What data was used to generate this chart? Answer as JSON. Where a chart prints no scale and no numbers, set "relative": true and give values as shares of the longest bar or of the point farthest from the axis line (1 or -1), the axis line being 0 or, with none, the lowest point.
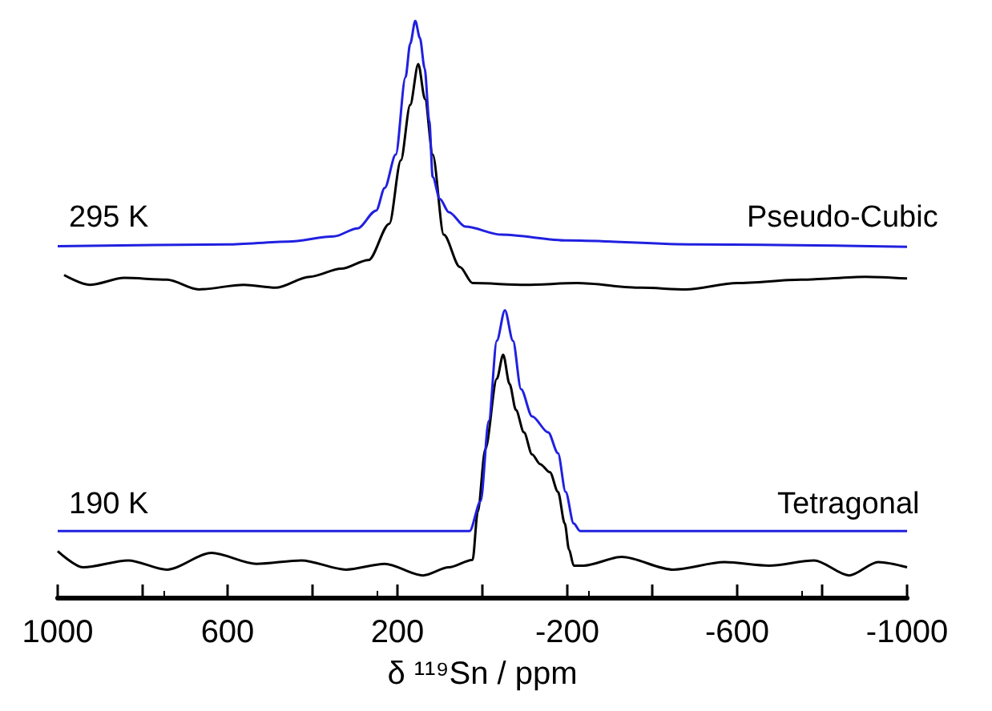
{
  "chart_data": {
    "type": "line",
    "relative": true,
    "xlabel": "δ ¹¹⁹Sn / ppm",
    "xlim": [
      1000,
      -1000
    ],
    "xticks": [
      1000,
      {
        "value": 800,
        "label": null
      },
      600,
      {
        "value": 400,
        "label": null
      },
      200,
      {
        "value": 0,
        "label": null
      },
      -200,
      {
        "value": -400,
        "label": null
      },
      -600,
      {
        "value": -800,
        "label": null
      },
      -1000
    ],
    "annotations": [
      "295 K",
      "Pseudo-Cubic",
      "190 K",
      "Tetragonal"
    ],
    "series": [
      {
        "color": "#000000",
        "x": [
          985,
          925,
          843,
          743,
          668,
          562,
          487,
          407,
          332,
          268,
          219,
          192,
          170,
          151,
          135,
          117,
          91,
          53,
          23,
          -102,
          -223,
          -374,
          -479,
          -600,
          -751,
          -902,
          -1000
        ],
        "values": [
          0.559,
          0.542,
          0.554,
          0.551,
          0.534,
          0.542,
          0.537,
          0.556,
          0.57,
          0.585,
          0.648,
          0.758,
          0.854,
          0.925,
          0.864,
          0.768,
          0.629,
          0.573,
          0.545,
          0.542,
          0.545,
          0.537,
          0.534,
          0.545,
          0.551,
          0.556,
          0.553
        ]
      },
      {
        "color": "#2020e0",
        "x": [
          1000,
          600,
          457,
          350,
          294,
          250,
          230,
          204,
          181,
          170,
          158,
          147,
          136,
          125,
          117,
          100,
          79,
          40,
          -45,
          -200,
          -500,
          -1000
        ],
        "values": [
          0.609,
          0.612,
          0.617,
          0.626,
          0.64,
          0.671,
          0.71,
          0.768,
          0.902,
          0.96,
          1,
          0.97,
          0.918,
          0.826,
          0.729,
          0.691,
          0.668,
          0.643,
          0.629,
          0.619,
          0.612,
          0.608
        ]
      },
      {
        "color": "#000000",
        "x": [
          1000,
          940,
          834,
          743,
          638,
          532,
          426,
          321,
          230,
          140,
          79,
          23,
          11,
          -7,
          -34,
          -49,
          -64,
          -79,
          -98,
          -117,
          -136,
          -159,
          -178,
          -194,
          -204,
          -215,
          -238,
          -328,
          -449,
          -570,
          -675,
          -781,
          -864,
          -932,
          -1000
        ],
        "values": [
          0.08,
          0.052,
          0.064,
          0.048,
          0.077,
          0.058,
          0.064,
          0.048,
          0.058,
          0.038,
          0.052,
          0.065,
          0.148,
          0.257,
          0.379,
          0.421,
          0.37,
          0.325,
          0.286,
          0.248,
          0.231,
          0.217,
          0.183,
          0.128,
          0.083,
          0.055,
          0.055,
          0.07,
          0.048,
          0.061,
          0.055,
          0.064,
          0.038,
          0.061,
          0.052
        ]
      },
      {
        "color": "#2020e0",
        "x": [
          1000,
          30,
          4,
          -15,
          -34,
          -53,
          -72,
          -91,
          -117,
          -155,
          -178,
          -196,
          -215,
          -230,
          -1000
        ],
        "values": [
          0.115,
          0.115,
          0.167,
          0.306,
          0.445,
          0.498,
          0.445,
          0.361,
          0.314,
          0.286,
          0.25,
          0.183,
          0.128,
          0.115,
          0.115
        ]
      }
    ]
  }
}
